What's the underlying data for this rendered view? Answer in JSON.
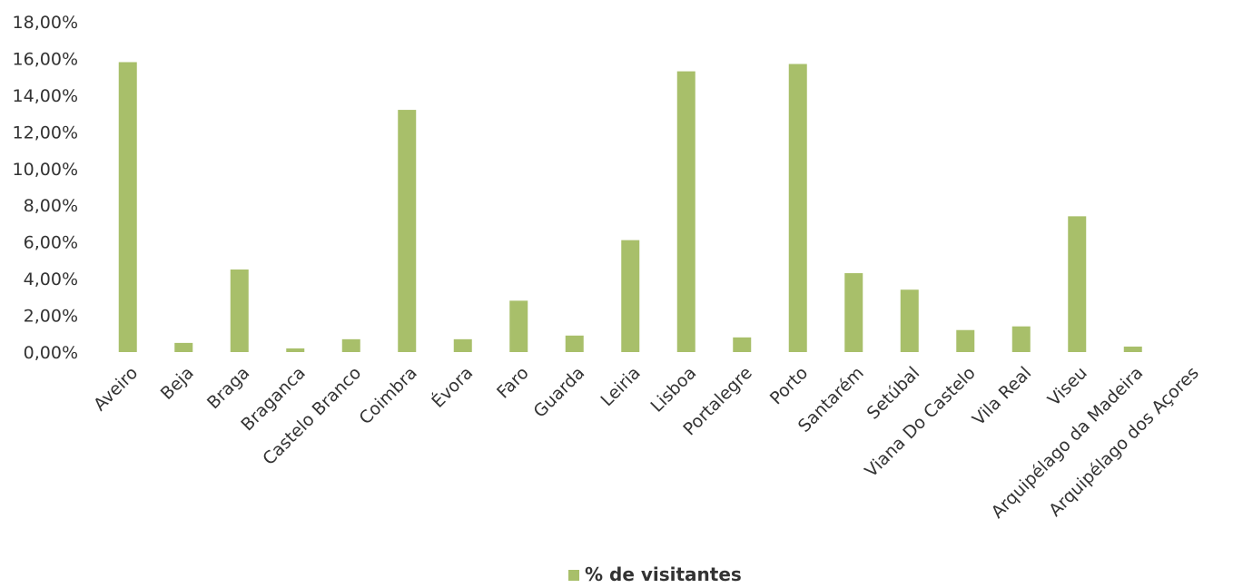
{
  "chart_data": {
    "type": "bar",
    "categories": [
      "Aveiro",
      "Beja",
      "Braga",
      "Braganca",
      "Castelo Branco",
      "Coimbra",
      "Évora",
      "Faro",
      "Guarda",
      "Leiria",
      "Lisboa",
      "Portalegre",
      "Porto",
      "Santarém",
      "Setúbal",
      "Viana Do Castelo",
      "Vila Real",
      "Viseu",
      "Arquipélago da Madeira",
      "Arquipélago dos Açores"
    ],
    "series": [
      {
        "name": "% de visitantes",
        "values": [
          15.8,
          0.5,
          4.5,
          0.2,
          0.7,
          13.2,
          0.7,
          2.8,
          0.9,
          6.1,
          15.3,
          0.8,
          15.7,
          4.3,
          3.4,
          1.2,
          1.4,
          7.4,
          0.3,
          0.0
        ]
      }
    ],
    "ylim": [
      0,
      18
    ],
    "yticks": [
      "0,00%",
      "2,00%",
      "4,00%",
      "6,00%",
      "8,00%",
      "10,00%",
      "12,00%",
      "14,00%",
      "16,00%",
      "18,00%"
    ],
    "grid": false,
    "legend_position": "bottom",
    "colors": {
      "bar": "#a8bf6a",
      "text": "#333333"
    }
  }
}
